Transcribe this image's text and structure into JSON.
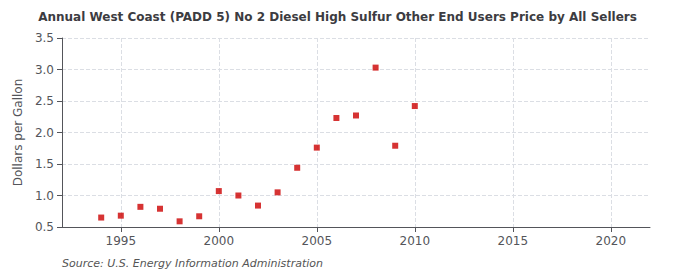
{
  "chart_data": {
    "type": "scatter",
    "title": "Annual West Coast (PADD 5) No 2 Diesel High Sulfur Other End Users Price by All Sellers",
    "ylabel": "Dollars per Gallon",
    "source": "Source: U.S. Energy Information Administration",
    "x": [
      1994,
      1995,
      1996,
      1997,
      1998,
      1999,
      2000,
      2001,
      2002,
      2003,
      2004,
      2005,
      2006,
      2007,
      2008,
      2009,
      2010
    ],
    "values": [
      0.65,
      0.68,
      0.82,
      0.79,
      0.59,
      0.67,
      1.07,
      1.0,
      0.84,
      1.05,
      1.44,
      1.76,
      2.23,
      2.27,
      3.03,
      1.79,
      2.42
    ],
    "color": "#cc0000",
    "marker": "square",
    "xlim": [
      1992,
      2022
    ],
    "ylim": [
      0.5,
      3.5
    ],
    "xticks": [
      1995,
      2000,
      2005,
      2010,
      2015,
      2020
    ],
    "yticks": [
      0.5,
      {
        "value": 1.0,
        "label": "1.0"
      },
      1.5,
      {
        "value": 2.0,
        "label": "2.0"
      },
      2.5,
      {
        "value": 3.0,
        "label": "3.0"
      },
      3.5
    ],
    "grid": true
  }
}
